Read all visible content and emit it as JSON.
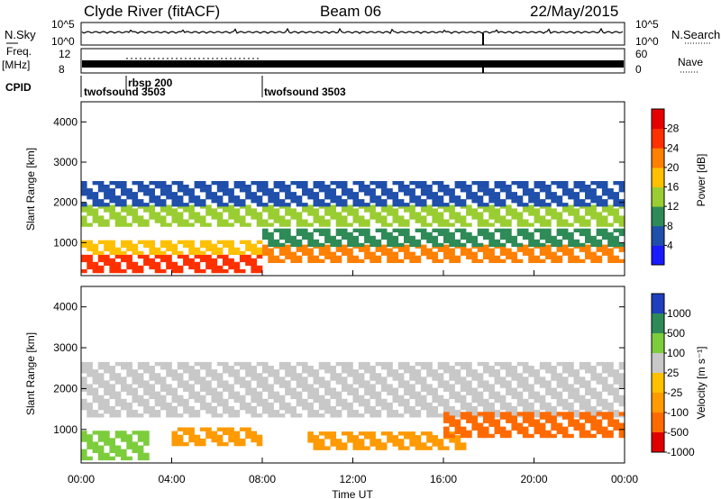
{
  "header": {
    "station": "Clyde River (fitACF)",
    "beam": "Beam 06",
    "date": "22/May/2015"
  },
  "chart_data": [
    {
      "type": "line",
      "panel": "noise",
      "left_label": "N.Sky",
      "right_label": "N.Search",
      "left_ticks": [
        "10^5",
        "10^0"
      ],
      "right_ticks": [
        "10^5",
        "10^0"
      ]
    },
    {
      "type": "line",
      "panel": "frequency / nave",
      "left_label_1": "Freq.",
      "left_label_2": "[MHz]",
      "right_label": "Nave",
      "left_ticks": [
        "12",
        "8"
      ],
      "right_ticks": [
        "60",
        "0"
      ]
    },
    {
      "type": "table",
      "panel": "cpid",
      "label": "CPID",
      "segments": [
        {
          "start_hour": 0,
          "end_hour": 8,
          "name": "twofsound 3503"
        },
        {
          "start_hour": 1.9,
          "end_hour": 8,
          "name": "rbsp 200"
        },
        {
          "start_hour": 8,
          "end_hour": 24,
          "name": "twofsound 3503"
        }
      ]
    },
    {
      "type": "heatmap",
      "title": "",
      "xlabel": "",
      "ylabel": "Slant Range [km]",
      "xlim": [
        0,
        24
      ],
      "ylim": [
        180,
        4500
      ],
      "y_ticks": [
        "1000",
        "2000",
        "3000",
        "4000"
      ],
      "colorbar_label": "Power [dB]",
      "colorbar_ticks": [
        "4",
        "8",
        "12",
        "16",
        "20",
        "24",
        "28"
      ],
      "colorbar_colors": [
        "#1a1aff",
        "#1f4faa",
        "#2e8b57",
        "#9acd32",
        "#ffc000",
        "#ff7f00",
        "#ff3000",
        "#e80000"
      ],
      "bands": [
        {
          "t0": 0,
          "t1": 8,
          "r0": 250,
          "r1": 700,
          "level": 28
        },
        {
          "t0": 0,
          "t1": 8,
          "r0": 700,
          "r1": 1000,
          "level": 20
        },
        {
          "t0": 0,
          "t1": 24,
          "r0": 1400,
          "r1": 1900,
          "level": 16
        },
        {
          "t0": 0,
          "t1": 24,
          "r0": 1900,
          "r1": 2500,
          "level": 8
        },
        {
          "t0": 8,
          "t1": 24,
          "r0": 500,
          "r1": 900,
          "level": 24
        },
        {
          "t0": 8,
          "t1": 24,
          "r0": 900,
          "r1": 1300,
          "level": 12
        }
      ]
    },
    {
      "type": "heatmap",
      "title": "",
      "xlabel": "Time UT",
      "ylabel": "Slant Range [km]",
      "xlim": [
        0,
        24
      ],
      "ylim": [
        180,
        4500
      ],
      "x_ticks": [
        "00:00",
        "04:00",
        "08:00",
        "12:00",
        "16:00",
        "20:00",
        "00:00"
      ],
      "y_ticks": [
        "1000",
        "2000",
        "3000",
        "4000"
      ],
      "colorbar_label": "Velocity [m s⁻¹]",
      "colorbar_ticks": [
        "1000",
        "500",
        "100",
        "25",
        "-25",
        "-100",
        "-500",
        "-1000"
      ],
      "colorbar_colors": [
        "#1f3fbf",
        "#2e8b57",
        "#7ccd3c",
        "#c8c8c8",
        "#ffc000",
        "#ff9a00",
        "#ff6a00",
        "#e00000"
      ],
      "bands": [
        {
          "t0": 0,
          "t1": 24,
          "r0": 1300,
          "r1": 2600,
          "level": 25
        },
        {
          "t0": 4,
          "t1": 8,
          "r0": 600,
          "r1": 1000,
          "level": -100
        },
        {
          "t0": 10,
          "t1": 17,
          "r0": 500,
          "r1": 900,
          "level": -100
        },
        {
          "t0": 16,
          "t1": 24,
          "r0": 800,
          "r1": 1400,
          "level": -500
        },
        {
          "t0": 0,
          "t1": 3,
          "r0": 250,
          "r1": 900,
          "level": 100
        }
      ]
    }
  ]
}
